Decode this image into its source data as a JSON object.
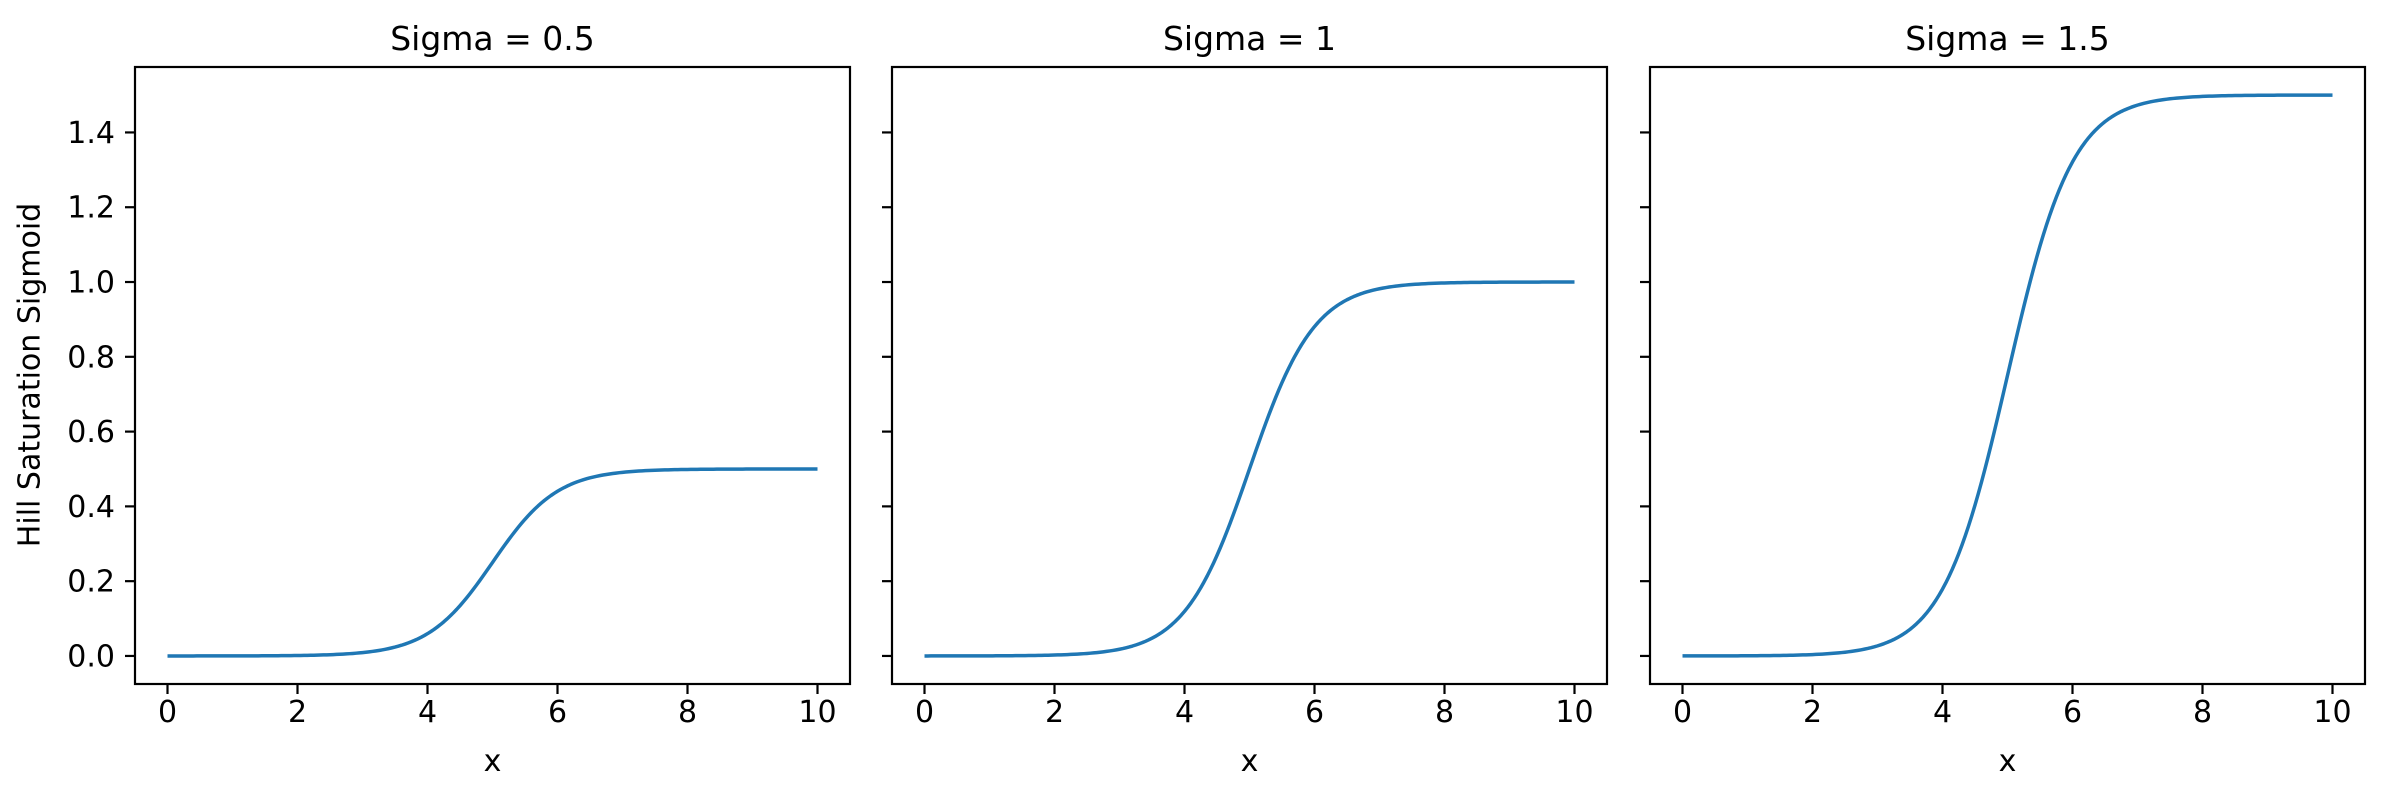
{
  "figure": {
    "background": "#ffffff",
    "text_color": "#000000",
    "line_color": "#1f77b4"
  },
  "axes": {
    "ylabel": "Hill Saturation Sigmoid",
    "xlabel": "x",
    "xlim": [
      -0.5,
      10.5
    ],
    "ylim": [
      -0.075,
      1.575
    ],
    "x_ticks": [
      0,
      2,
      4,
      6,
      8,
      10
    ],
    "x_tick_labels": [
      "0",
      "2",
      "4",
      "6",
      "8",
      "10"
    ],
    "y_ticks": [
      0.0,
      0.2,
      0.4,
      0.6,
      0.8,
      1.0,
      1.2,
      1.4
    ],
    "y_tick_labels": [
      "0.0",
      "0.2",
      "0.4",
      "0.6",
      "0.8",
      "1.0",
      "1.2",
      "1.4"
    ],
    "grid": false
  },
  "subplots": [
    {
      "title": "Sigma = 0.5",
      "sigma": 0.5
    },
    {
      "title": "Sigma = 1",
      "sigma": 1
    },
    {
      "title": "Sigma = 1.5",
      "sigma": 1.5
    }
  ],
  "chart_data": {
    "type": "line",
    "layout": "1x3 shared-y",
    "formula": "y = sigma / (1 + exp(-slope * (x - center)))",
    "center": 5,
    "slope": 2,
    "x_range": [
      0,
      10
    ],
    "x": [
      0,
      0.5,
      1,
      1.5,
      2,
      2.5,
      3,
      3.5,
      4,
      4.5,
      5,
      5.5,
      6,
      6.5,
      7,
      7.5,
      8,
      8.5,
      9,
      9.5,
      10
    ],
    "series": [
      {
        "name": "Sigma = 0.5",
        "sigma": 0.5,
        "values": [
          0.0,
          0.0001,
          0.0002,
          0.0005,
          0.0012,
          0.0033,
          0.009,
          0.0237,
          0.0596,
          0.1345,
          0.25,
          0.3655,
          0.4404,
          0.4763,
          0.491,
          0.4967,
          0.4988,
          0.4996,
          0.4998,
          0.4999,
          0.5
        ]
      },
      {
        "name": "Sigma = 1",
        "sigma": 1,
        "values": [
          0.0,
          0.0001,
          0.0003,
          0.0009,
          0.0025,
          0.0067,
          0.018,
          0.0474,
          0.1192,
          0.2689,
          0.5,
          0.7311,
          0.8808,
          0.9526,
          0.982,
          0.9933,
          0.9975,
          0.9991,
          0.9997,
          0.9999,
          1.0
        ]
      },
      {
        "name": "Sigma = 1.5",
        "sigma": 1.5,
        "values": [
          0.0001,
          0.0002,
          0.0005,
          0.0014,
          0.0037,
          0.01,
          0.0269,
          0.0711,
          0.1789,
          0.4034,
          0.75,
          1.0966,
          1.3211,
          1.4289,
          1.4731,
          1.49,
          1.4963,
          1.4986,
          1.4995,
          1.4998,
          1.5
        ]
      }
    ],
    "ylim": [
      -0.075,
      1.575
    ],
    "xlim": [
      -0.5,
      10.5
    ],
    "titles": [
      "Sigma = 0.5",
      "Sigma = 1",
      "Sigma = 1.5"
    ],
    "xlabel": "x",
    "ylabel": "Hill Saturation Sigmoid"
  }
}
